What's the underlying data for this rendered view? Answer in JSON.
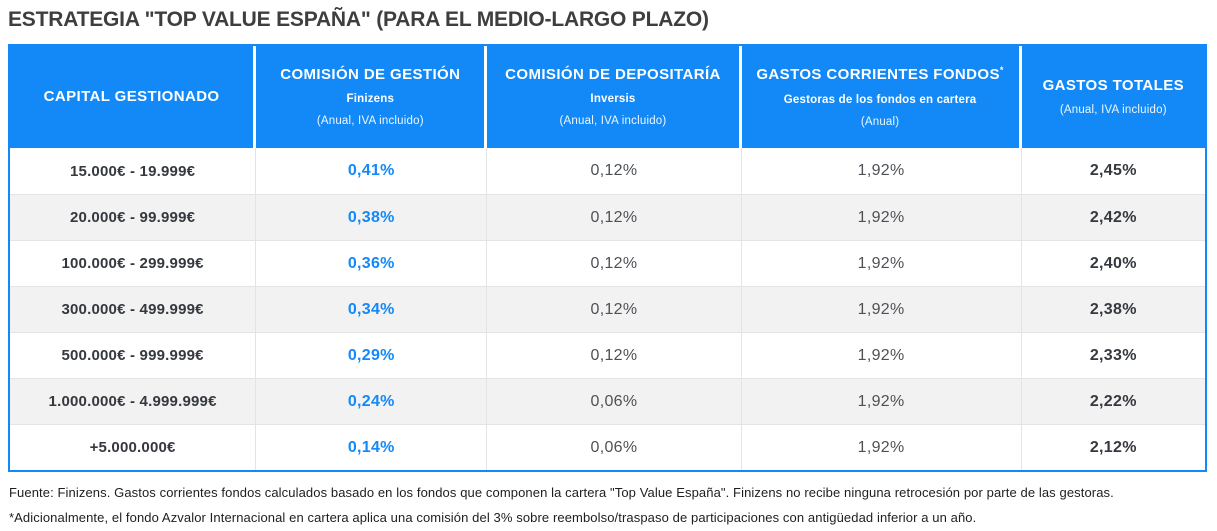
{
  "colors": {
    "accent_blue": "#1389F8",
    "header_text": "#FFFFFF",
    "row_alt_bg": "#F2F2F2",
    "row_bg": "#FFFFFF",
    "grid_line": "#E4E4E4",
    "title_color": "#3E3E3E",
    "dark_value_text": "#35393F",
    "muted_value_text": "#4D5156"
  },
  "chart_data": {
    "type": "table",
    "title": "ESTRATEGIA \"TOP VALUE ESPAÑA\" (PARA EL MEDIO-LARGO PLAZO)",
    "legend_position": "none",
    "grid": true,
    "columns": [
      {
        "key": "capital-gestionado",
        "label": "CAPITAL GESTIONADO",
        "superscript": "",
        "sub_entity": "",
        "sub_note": ""
      },
      {
        "key": "comision-de-gestion",
        "label": "COMISIÓN DE GESTIÓN",
        "superscript": "",
        "sub_entity": "Finizens",
        "sub_note": "(Anual, IVA incluido)"
      },
      {
        "key": "comision-de-depositaria",
        "label": "COMISIÓN DE DEPOSITARÍA",
        "superscript": "",
        "sub_entity": "Inversis",
        "sub_note": "(Anual, IVA incluido)"
      },
      {
        "key": "gastos-corrientes-fondos",
        "label": "GASTOS CORRIENTES FONDOS",
        "superscript": "*",
        "sub_entity": "Gestoras de los fondos en cartera",
        "sub_note": "(Anual)"
      },
      {
        "key": "gastos-totales",
        "label": "GASTOS TOTALES",
        "superscript": "",
        "sub_entity": "",
        "sub_note": "(Anual, IVA incluido)"
      }
    ],
    "rows": [
      [
        "15.000€ - 19.999€",
        "0,41%",
        "0,12%",
        "1,92%",
        "2,45%"
      ],
      [
        "20.000€ - 99.999€",
        "0,38%",
        "0,12%",
        "1,92%",
        "2,42%"
      ],
      [
        "100.000€ - 299.999€",
        "0,36%",
        "0,12%",
        "1,92%",
        "2,40%"
      ],
      [
        "300.000€ - 499.999€",
        "0,34%",
        "0,12%",
        "1,92%",
        "2,38%"
      ],
      [
        "500.000€ - 999.999€",
        "0,29%",
        "0,12%",
        "1,92%",
        "2,33%"
      ],
      [
        "1.000.000€ - 4.999.999€",
        "0,24%",
        "0,06%",
        "1,92%",
        "2,22%"
      ],
      [
        "+5.000.000€",
        "0,14%",
        "0,06%",
        "1,92%",
        "2,12%"
      ]
    ],
    "footnotes": [
      "Fuente: Finizens. Gastos corrientes fondos calculados basado en los fondos que componen la cartera \"Top Value España\". Finizens no recibe ninguna retrocesión por parte de las gestoras.",
      "*Adicionalmente, el fondo Azvalor Internacional en cartera aplica una comisión del 3% sobre reembolso/traspaso de participaciones con antigüedad inferior a un año."
    ]
  }
}
